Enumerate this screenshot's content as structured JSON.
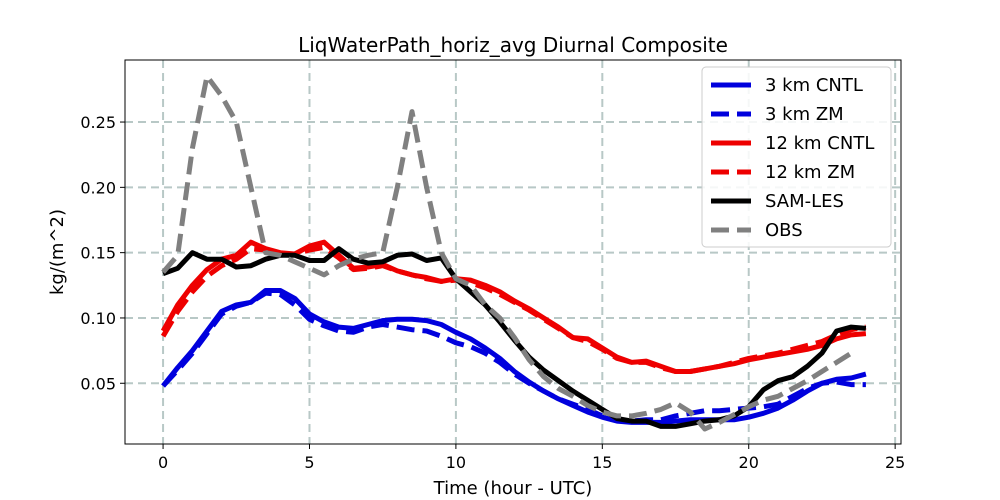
{
  "chart_data": {
    "type": "line",
    "title": "LiqWaterPath_horiz_avg Diurnal Composite",
    "xlabel": "Time (hour - UTC)",
    "ylabel": "kg/(m^2)",
    "xlim": [
      -1.3,
      25.2
    ],
    "ylim": [
      0.0035,
      0.2975
    ],
    "xticks": [
      0,
      5,
      10,
      15,
      20,
      25
    ],
    "xtick_labels": [
      "0",
      "5",
      "10",
      "15",
      "20",
      "25"
    ],
    "yticks": [
      0.05,
      0.1,
      0.15,
      0.2,
      0.25
    ],
    "ytick_labels": [
      "0.05",
      "0.10",
      "0.15",
      "0.20",
      "0.25"
    ],
    "grid": true,
    "legend_position": "top-right",
    "series": [
      {
        "name": "3 km CNTL",
        "color": "#0000dd",
        "style": "solid",
        "x": [
          0,
          0.5,
          1,
          1.5,
          2,
          2.5,
          3,
          3.5,
          4,
          4.5,
          5,
          5.5,
          6,
          6.5,
          7,
          7.5,
          8,
          8.5,
          9,
          9.5,
          10,
          10.5,
          11,
          11.5,
          12,
          12.5,
          13,
          13.5,
          14,
          14.5,
          15,
          15.5,
          16,
          16.5,
          17,
          17.5,
          18,
          18.5,
          19,
          19.5,
          20,
          20.5,
          21,
          21.5,
          22,
          22.5,
          23,
          23.5,
          24
        ],
        "y": [
          0.048,
          0.062,
          0.075,
          0.09,
          0.105,
          0.11,
          0.112,
          0.121,
          0.121,
          0.115,
          0.103,
          0.097,
          0.093,
          0.092,
          0.095,
          0.098,
          0.099,
          0.099,
          0.098,
          0.095,
          0.089,
          0.084,
          0.077,
          0.069,
          0.059,
          0.051,
          0.044,
          0.038,
          0.033,
          0.028,
          0.024,
          0.021,
          0.02,
          0.02,
          0.02,
          0.021,
          0.022,
          0.022,
          0.022,
          0.022,
          0.024,
          0.027,
          0.031,
          0.037,
          0.044,
          0.05,
          0.053,
          0.054,
          0.057
        ]
      },
      {
        "name": "3 km ZM",
        "color": "#0000dd",
        "style": "dashed",
        "x": [
          0,
          0.5,
          1,
          1.5,
          2,
          2.5,
          3,
          3.5,
          4,
          4.5,
          5,
          5.5,
          6,
          6.5,
          7,
          7.5,
          8,
          8.5,
          9,
          9.5,
          10,
          10.5,
          11,
          11.5,
          12,
          12.5,
          13,
          13.5,
          14,
          14.5,
          15,
          15.5,
          16,
          16.5,
          17,
          17.5,
          18,
          18.5,
          19,
          19.5,
          20,
          20.5,
          21,
          21.5,
          22,
          22.5,
          23,
          23.5,
          24
        ],
        "y": [
          0.048,
          0.06,
          0.073,
          0.088,
          0.103,
          0.109,
          0.112,
          0.119,
          0.118,
          0.11,
          0.099,
          0.094,
          0.09,
          0.089,
          0.093,
          0.095,
          0.093,
          0.091,
          0.09,
          0.086,
          0.081,
          0.078,
          0.073,
          0.066,
          0.057,
          0.05,
          0.044,
          0.038,
          0.034,
          0.03,
          0.025,
          0.022,
          0.021,
          0.022,
          0.022,
          0.025,
          0.027,
          0.029,
          0.029,
          0.03,
          0.031,
          0.032,
          0.034,
          0.04,
          0.046,
          0.05,
          0.051,
          0.049,
          0.049
        ]
      },
      {
        "name": "12 km CNTL",
        "color": "#ee0000",
        "style": "solid",
        "x": [
          0,
          0.5,
          1,
          1.5,
          2,
          2.5,
          3,
          3.5,
          4,
          4.5,
          5,
          5.5,
          6,
          6.5,
          7,
          7.5,
          8,
          8.5,
          9,
          9.5,
          10,
          10.5,
          11,
          11.5,
          12,
          12.5,
          13,
          13.5,
          14,
          14.5,
          15,
          15.5,
          16,
          16.5,
          17,
          17.5,
          18,
          18.5,
          19,
          19.5,
          20,
          20.5,
          21,
          21.5,
          22,
          22.5,
          23,
          23.5,
          24
        ],
        "y": [
          0.09,
          0.11,
          0.125,
          0.137,
          0.145,
          0.148,
          0.158,
          0.153,
          0.15,
          0.149,
          0.155,
          0.158,
          0.148,
          0.138,
          0.139,
          0.141,
          0.136,
          0.133,
          0.131,
          0.128,
          0.13,
          0.129,
          0.125,
          0.12,
          0.113,
          0.107,
          0.1,
          0.093,
          0.085,
          0.084,
          0.077,
          0.07,
          0.066,
          0.067,
          0.063,
          0.059,
          0.059,
          0.061,
          0.063,
          0.065,
          0.068,
          0.07,
          0.072,
          0.074,
          0.076,
          0.079,
          0.084,
          0.087,
          0.088
        ]
      },
      {
        "name": "12 km ZM",
        "color": "#ee0000",
        "style": "dashed",
        "x": [
          0,
          0.5,
          1,
          1.5,
          2,
          2.5,
          3,
          3.5,
          4,
          4.5,
          5,
          5.5,
          6,
          6.5,
          7,
          7.5,
          8,
          8.5,
          9,
          9.5,
          10,
          10.5,
          11,
          11.5,
          12,
          12.5,
          13,
          13.5,
          14,
          14.5,
          15,
          15.5,
          16,
          16.5,
          17,
          17.5,
          18,
          18.5,
          19,
          19.5,
          20,
          20.5,
          21,
          21.5,
          22,
          22.5,
          23,
          23.5,
          24
        ],
        "y": [
          0.086,
          0.105,
          0.12,
          0.132,
          0.14,
          0.145,
          0.153,
          0.152,
          0.148,
          0.149,
          0.152,
          0.154,
          0.146,
          0.137,
          0.138,
          0.14,
          0.136,
          0.133,
          0.13,
          0.128,
          0.129,
          0.127,
          0.123,
          0.118,
          0.112,
          0.106,
          0.099,
          0.092,
          0.085,
          0.082,
          0.076,
          0.069,
          0.066,
          0.066,
          0.062,
          0.059,
          0.059,
          0.061,
          0.063,
          0.066,
          0.069,
          0.071,
          0.073,
          0.076,
          0.079,
          0.082,
          0.087,
          0.091,
          0.093
        ]
      },
      {
        "name": "SAM-LES",
        "color": "#000000",
        "style": "solid",
        "x": [
          0,
          0.5,
          1,
          1.5,
          2,
          2.5,
          3,
          3.5,
          4,
          4.5,
          5,
          5.5,
          6,
          6.5,
          7,
          7.5,
          8,
          8.5,
          9,
          9.5,
          10,
          10.5,
          11,
          11.5,
          12,
          12.5,
          13,
          13.5,
          14,
          14.5,
          15,
          15.5,
          16,
          16.5,
          17,
          17.5,
          18,
          18.5,
          19,
          19.5,
          20,
          20.5,
          21,
          21.5,
          22,
          22.5,
          23,
          23.5,
          24
        ],
        "y": [
          0.134,
          0.138,
          0.15,
          0.145,
          0.145,
          0.139,
          0.14,
          0.145,
          0.148,
          0.148,
          0.144,
          0.144,
          0.153,
          0.145,
          0.142,
          0.143,
          0.148,
          0.149,
          0.144,
          0.146,
          0.13,
          0.12,
          0.11,
          0.097,
          0.083,
          0.07,
          0.06,
          0.052,
          0.044,
          0.037,
          0.03,
          0.023,
          0.021,
          0.021,
          0.017,
          0.017,
          0.019,
          0.021,
          0.022,
          0.025,
          0.032,
          0.045,
          0.052,
          0.055,
          0.063,
          0.073,
          0.09,
          0.093,
          0.092
        ]
      },
      {
        "name": "OBS",
        "color": "#808080",
        "style": "dashed",
        "x": [
          0,
          0.5,
          1,
          1.5,
          2,
          2.5,
          3,
          3.5,
          4,
          4.5,
          5,
          5.5,
          6,
          6.5,
          7,
          7.5,
          8,
          8.5,
          9,
          9.5,
          10,
          10.5,
          11,
          11.5,
          12,
          12.5,
          13,
          13.5,
          14,
          14.5,
          15,
          15.5,
          16,
          16.5,
          17,
          17.5,
          18,
          18.5,
          19,
          19.5,
          20,
          20.5,
          21,
          21.5,
          22,
          22.5,
          23,
          23.5
        ],
        "y": [
          0.135,
          0.148,
          0.23,
          0.285,
          0.27,
          0.25,
          0.2,
          0.15,
          0.148,
          0.143,
          0.138,
          0.133,
          0.14,
          0.145,
          0.148,
          0.15,
          0.2,
          0.258,
          0.2,
          0.15,
          0.13,
          0.125,
          0.11,
          0.1,
          0.085,
          0.068,
          0.055,
          0.046,
          0.04,
          0.033,
          0.028,
          0.025,
          0.025,
          0.027,
          0.03,
          0.035,
          0.028,
          0.015,
          0.02,
          0.026,
          0.032,
          0.037,
          0.04,
          0.046,
          0.052,
          0.059,
          0.066,
          0.073
        ]
      }
    ]
  }
}
